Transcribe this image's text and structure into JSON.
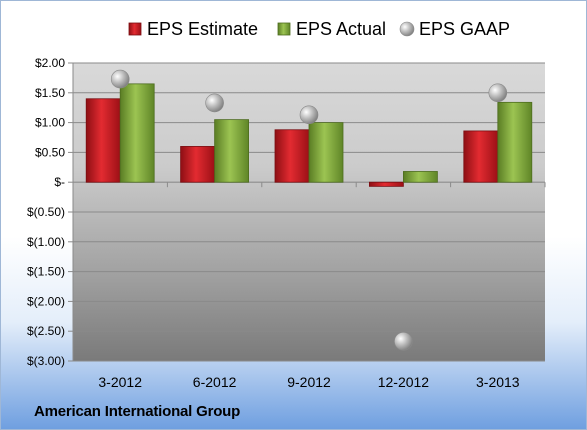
{
  "chart_data": {
    "type": "bar",
    "categories": [
      "3-2012",
      "6-2012",
      "9-2012",
      "12-2012",
      "3-2013"
    ],
    "series": [
      {
        "name": "EPS Estimate",
        "kind": "bar",
        "color": "#c8171e",
        "values": [
          1.4,
          0.6,
          0.88,
          -0.07,
          0.86
        ]
      },
      {
        "name": "EPS Actual",
        "kind": "bar",
        "color": "#7fa83c",
        "values": [
          1.65,
          1.05,
          1.0,
          0.18,
          1.34
        ]
      },
      {
        "name": "EPS GAAP",
        "kind": "marker",
        "color": "#a8a8a8",
        "values": [
          1.73,
          1.33,
          1.13,
          -2.67,
          1.5
        ]
      }
    ],
    "ylim": [
      -3.0,
      2.0
    ],
    "yticks": [
      2.0,
      1.5,
      1.0,
      0.5,
      0.0,
      -0.5,
      -1.0,
      -1.5,
      -2.0,
      -2.5,
      -3.0
    ],
    "ytick_labels": [
      "$2.00",
      "$1.50",
      "$1.00",
      "$0.50",
      "$-",
      "$(0.50)",
      "$(1.00)",
      "$(1.50)",
      "$(2.00)",
      "$(2.50)",
      "$(3.00)"
    ],
    "legend_position": "top",
    "grid": true
  },
  "company": "American International Group"
}
